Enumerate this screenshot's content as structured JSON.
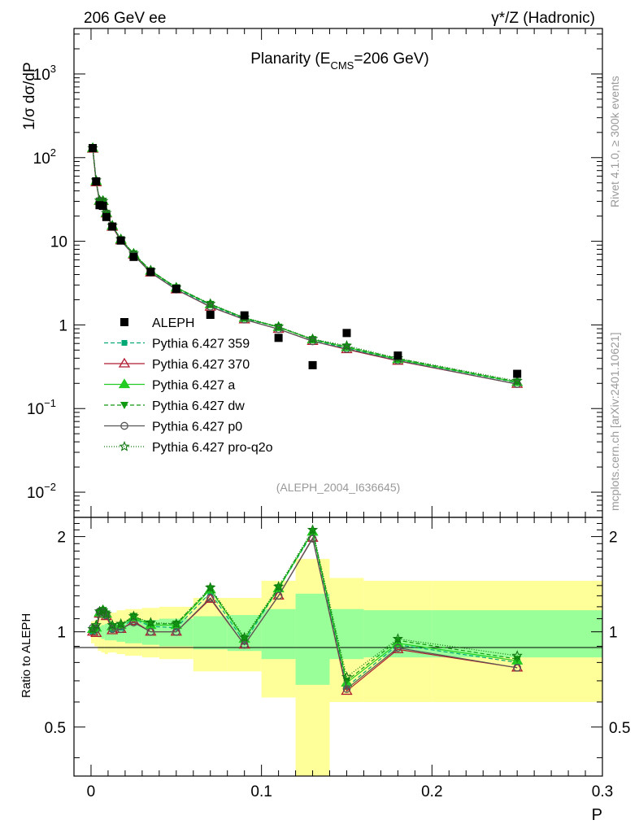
{
  "header": {
    "left_label": "206 GeV ee",
    "right_label": "γ*/Z (Hadronic)"
  },
  "side_text": {
    "rivet": "Rivet 4.1.0, ≥ 300k events",
    "mcplots": "mcplots.cern.ch [arXiv:2401.10621]"
  },
  "chart_data": {
    "type": "line",
    "title_main": "Planarity (E",
    "title_sub": "CMS",
    "title_end": "=206 GeV)",
    "watermark": "(ALEPH_2004_I636645)",
    "ylabel": "1/σ  dσ/dP",
    "ratio_ylabel": "Ratio to ALEPH",
    "xlabel": "P",
    "xlim": [
      -0.01,
      0.3
    ],
    "ylim": [
      0.005,
      3500
    ],
    "ratio_ylim": [
      0.35,
      2.3
    ],
    "x_ticks": [
      "0",
      "0.1",
      "0.2",
      "0.3"
    ],
    "x_tick_values": [
      0,
      0.1,
      0.2,
      0.3
    ],
    "y_ticks_main": [
      {
        "value": 0.01,
        "base": "10",
        "exp": "−2"
      },
      {
        "value": 0.1,
        "base": "10",
        "exp": "−1"
      },
      {
        "value": 1,
        "base": "1",
        "exp": ""
      },
      {
        "value": 10,
        "base": "10",
        "exp": ""
      },
      {
        "value": 100,
        "base": "10",
        "exp": "2"
      },
      {
        "value": 1000,
        "base": "10",
        "exp": "3"
      }
    ],
    "y_ticks_ratio": [
      "0.5",
      "1",
      "2"
    ],
    "y_tick_values_ratio": [
      0.5,
      1,
      2
    ],
    "bins": [
      [
        0,
        0.002
      ],
      [
        0.002,
        0.004
      ],
      [
        0.004,
        0.006
      ],
      [
        0.006,
        0.008
      ],
      [
        0.008,
        0.01
      ],
      [
        0.01,
        0.015
      ],
      [
        0.015,
        0.02
      ],
      [
        0.02,
        0.03
      ],
      [
        0.03,
        0.04
      ],
      [
        0.04,
        0.06
      ],
      [
        0.06,
        0.08
      ],
      [
        0.08,
        0.1
      ],
      [
        0.1,
        0.12
      ],
      [
        0.12,
        0.14
      ],
      [
        0.14,
        0.16
      ],
      [
        0.16,
        0.2
      ],
      [
        0.2,
        0.3
      ]
    ],
    "x": [
      0.001,
      0.003,
      0.005,
      0.007,
      0.009,
      0.0125,
      0.0175,
      0.025,
      0.035,
      0.05,
      0.07,
      0.09,
      0.11,
      0.13,
      0.15,
      0.18,
      0.25
    ],
    "data": {
      "name": "ALEPH",
      "values": [
        130,
        52,
        27,
        26.5,
        19.5,
        15,
        10.2,
        6.5,
        4.3,
        2.7,
        1.32,
        1.3,
        0.7,
        0.33,
        0.8,
        0.43,
        0.26
      ],
      "stat_band_ratio": [
        [
          0.97,
          1.03
        ],
        [
          0.97,
          1.03
        ],
        [
          0.96,
          1.04
        ],
        [
          0.95,
          1.05
        ],
        [
          0.94,
          1.06
        ],
        [
          0.94,
          1.06
        ],
        [
          0.93,
          1.07
        ],
        [
          0.92,
          1.08
        ],
        [
          0.91,
          1.09
        ],
        [
          0.9,
          1.1
        ],
        [
          0.88,
          1.12
        ],
        [
          0.87,
          1.13
        ],
        [
          0.82,
          1.18
        ],
        [
          0.68,
          1.32
        ],
        [
          0.82,
          1.18
        ],
        [
          0.83,
          1.17
        ],
        [
          0.83,
          1.17
        ]
      ],
      "total_band_ratio": [
        [
          0.92,
          1.08
        ],
        [
          0.9,
          1.09
        ],
        [
          0.87,
          1.1
        ],
        [
          0.86,
          1.12
        ],
        [
          0.85,
          1.14
        ],
        [
          0.86,
          1.15
        ],
        [
          0.85,
          1.17
        ],
        [
          0.84,
          1.18
        ],
        [
          0.83,
          1.19
        ],
        [
          0.82,
          1.2
        ],
        [
          0.75,
          1.28
        ],
        [
          0.75,
          1.28
        ],
        [
          0.62,
          1.45
        ],
        [
          0.3,
          1.7
        ],
        [
          0.6,
          1.48
        ],
        [
          0.6,
          1.45
        ],
        [
          0.6,
          1.45
        ]
      ]
    },
    "series": [
      {
        "name": "Pythia 6.427 359",
        "color": "#00a876",
        "dash": "5,3",
        "marker": "square",
        "ratio": [
          1.0,
          1.01,
          1.13,
          1.15,
          1.12,
          1.02,
          1.03,
          1.1,
          1.04,
          1.03,
          1.33,
          0.93,
          1.37,
          2.05,
          0.67,
          0.91,
          0.8
        ]
      },
      {
        "name": "Pythia 6.427 370",
        "color": "#b01c30",
        "dash": "",
        "marker": "triangle-open",
        "ratio": [
          1.0,
          0.99,
          1.14,
          1.16,
          1.12,
          1.01,
          1.02,
          1.08,
          1.0,
          1.0,
          1.27,
          0.91,
          1.3,
          1.98,
          0.65,
          0.88,
          0.77
        ]
      },
      {
        "name": "Pythia 6.427 a",
        "color": "#22cc22",
        "dash": "",
        "marker": "triangle",
        "ratio": [
          1.02,
          1.03,
          1.15,
          1.17,
          1.14,
          1.04,
          1.05,
          1.11,
          1.05,
          1.05,
          1.36,
          0.95,
          1.37,
          2.07,
          0.69,
          0.92,
          0.81
        ]
      },
      {
        "name": "Pythia 6.427 dw",
        "color": "#119911",
        "dash": "5,3",
        "marker": "triangle-down",
        "ratio": [
          1.01,
          1.03,
          1.15,
          1.17,
          1.14,
          1.04,
          1.05,
          1.12,
          1.06,
          1.06,
          1.37,
          0.95,
          1.38,
          2.08,
          0.7,
          0.94,
          0.82
        ]
      },
      {
        "name": "Pythia 6.427 p0",
        "color": "#555555",
        "dash": "",
        "marker": "circle-open",
        "ratio": [
          1.03,
          1.02,
          1.16,
          1.15,
          1.13,
          1.02,
          1.02,
          1.07,
          1.0,
          1.0,
          1.28,
          0.91,
          1.3,
          1.97,
          0.66,
          0.89,
          0.77
        ]
      },
      {
        "name": "Pythia 6.427 pro-q2o",
        "color": "#117711",
        "dash": "1,2",
        "marker": "star",
        "ratio": [
          1.02,
          1.05,
          1.16,
          1.17,
          1.14,
          1.05,
          1.06,
          1.12,
          1.07,
          1.06,
          1.38,
          0.96,
          1.39,
          2.1,
          0.72,
          0.95,
          0.84
        ]
      }
    ]
  }
}
